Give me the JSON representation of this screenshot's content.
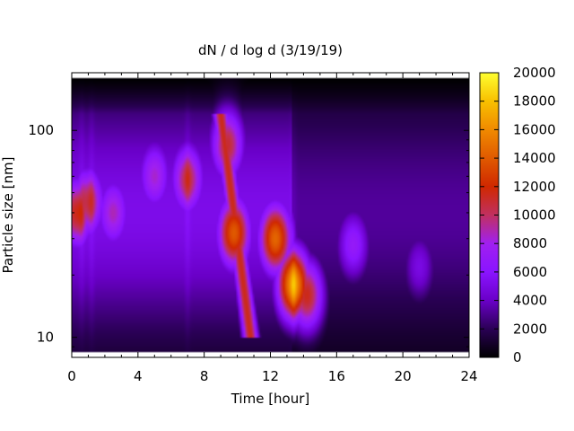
{
  "chart_data": {
    "type": "heatmap",
    "title": "dN / d log d (3/19/19)",
    "xlabel": "Time [hour]",
    "ylabel": "Particle size [nm]",
    "x_range": [
      0,
      24
    ],
    "x_ticks": [
      0,
      4,
      8,
      12,
      16,
      20,
      24
    ],
    "y_scale": "log",
    "y_range": [
      8,
      190
    ],
    "y_ticks": [
      10,
      100
    ],
    "data_extent": {
      "x": [
        0,
        24
      ],
      "y": [
        8.5,
        180
      ]
    },
    "colorbar": {
      "range": [
        0,
        20000
      ],
      "ticks": [
        0,
        2000,
        4000,
        6000,
        8000,
        10000,
        12000,
        14000,
        16000,
        18000,
        20000
      ],
      "colormap": [
        "#000000",
        "#2a0055",
        "#6a00c8",
        "#8a14ff",
        "#a020f0",
        "#c03060",
        "#d02800",
        "#e05a00",
        "#f08a00",
        "#f8c000",
        "#ffff30"
      ]
    },
    "size_distribution_events": [
      {
        "time_h": 0.3,
        "diameter_nm": 40,
        "dN_dlogd": 11500
      },
      {
        "time_h": 1.0,
        "diameter_nm": 45,
        "dN_dlogd": 10500
      },
      {
        "time_h": 2.5,
        "diameter_nm": 40,
        "dN_dlogd": 8800
      },
      {
        "time_h": 5.0,
        "diameter_nm": 60,
        "dN_dlogd": 8500
      },
      {
        "time_h": 7.0,
        "diameter_nm": 58,
        "dN_dlogd": 10500
      },
      {
        "time_h": 9.4,
        "diameter_nm": 85,
        "dN_dlogd": 11000
      },
      {
        "time_h": 9.8,
        "diameter_nm": 32,
        "dN_dlogd": 14000
      },
      {
        "time_h": 12.3,
        "diameter_nm": 30,
        "dN_dlogd": 14500
      },
      {
        "time_h": 13.4,
        "diameter_nm": 18,
        "dN_dlogd": 16500
      },
      {
        "time_h": 14.2,
        "diameter_nm": 16,
        "dN_dlogd": 11500
      },
      {
        "time_h": 17.0,
        "diameter_nm": 28,
        "dN_dlogd": 7000
      },
      {
        "time_h": 21.0,
        "diameter_nm": 22,
        "dN_dlogd": 5000
      }
    ]
  }
}
